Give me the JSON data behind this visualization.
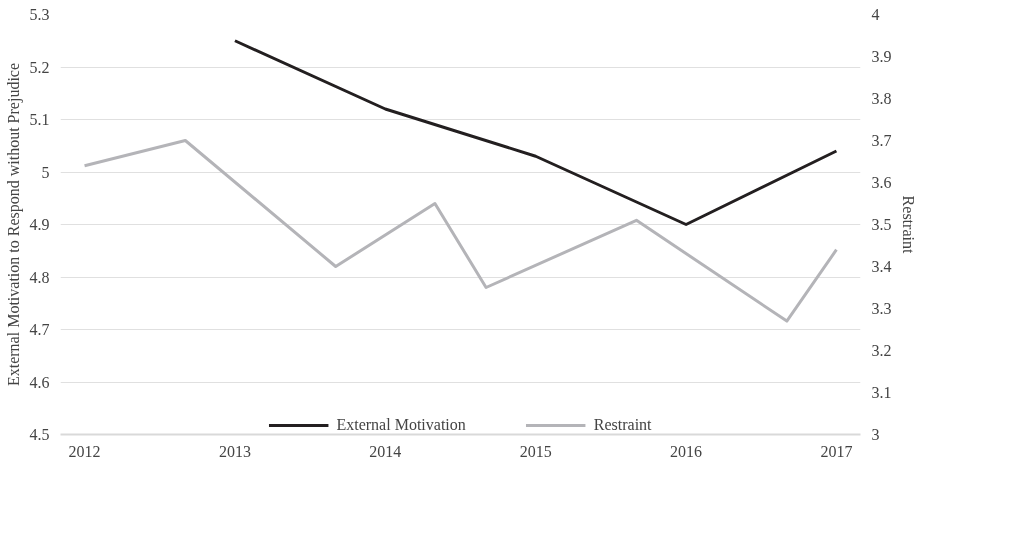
{
  "chart_data": {
    "type": "line",
    "ylabel": "External Motivation to Respond without Prejudice",
    "y2label": "Restraint",
    "xlim": [
      2011.84,
      2017.16
    ],
    "xticks": [
      2012,
      2013,
      2014,
      2015,
      2016,
      2017
    ],
    "ylim": [
      4.5,
      5.3
    ],
    "yticks": [
      4.5,
      4.6,
      4.7,
      4.8,
      4.9,
      5,
      5.1,
      5.2,
      5.3
    ],
    "y2lim": [
      3,
      4
    ],
    "y2ticks": [
      3,
      3.1,
      3.2,
      3.3,
      3.4,
      3.5,
      3.6,
      3.7,
      3.8,
      3.9,
      4
    ],
    "grid": "y",
    "legend": "bottom",
    "marker": "none",
    "line_style": "solid",
    "series": [
      {
        "name": "External Motivation",
        "color": "#231f20",
        "x": [
          2013,
          2014,
          2015,
          2016,
          2017
        ],
        "values": [
          5.25,
          5.12,
          5.03,
          4.9,
          5.04
        ]
      },
      {
        "name": "Restraint",
        "color": "#b4b4b8",
        "axis": "y2",
        "x": [
          2012,
          2012.67,
          2013.67,
          2014.33,
          2014.67,
          2015.67,
          2016.67,
          2017
        ],
        "values": [
          3.64,
          3.7,
          3.4,
          3.55,
          3.35,
          3.51,
          3.27,
          3.44
        ]
      }
    ]
  }
}
